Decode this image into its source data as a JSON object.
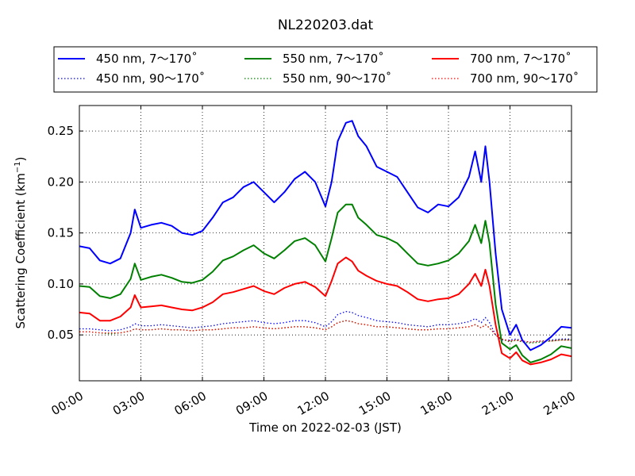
{
  "chart_data": {
    "type": "line",
    "title": "NL220203.dat",
    "xlabel": "Time on 2022-02-03 (JST)",
    "ylabel": "Scattering Coefficient (km",
    "ylabel_sup": "−1",
    "ylabel_close": ")",
    "xlim": [
      0,
      24
    ],
    "ylim": [
      0.005,
      0.275
    ],
    "grid": true,
    "legend_position": "top",
    "x_ticks": [
      {
        "value": 0,
        "label": "00:00"
      },
      {
        "value": 3,
        "label": "03:00"
      },
      {
        "value": 6,
        "label": "06:00"
      },
      {
        "value": 9,
        "label": "09:00"
      },
      {
        "value": 12,
        "label": "12:00"
      },
      {
        "value": 15,
        "label": "15:00"
      },
      {
        "value": 18,
        "label": "18:00"
      },
      {
        "value": 21,
        "label": "21:00"
      },
      {
        "value": 24,
        "label": "24:00"
      }
    ],
    "y_ticks": [
      {
        "value": 0.05,
        "label": "0.05"
      },
      {
        "value": 0.1,
        "label": "0.10"
      },
      {
        "value": 0.15,
        "label": "0.15"
      },
      {
        "value": 0.2,
        "label": "0.20"
      },
      {
        "value": 0.25,
        "label": "0.25"
      }
    ],
    "x": [
      0,
      0.5,
      1,
      1.5,
      2,
      2.5,
      2.7,
      3,
      3.5,
      4,
      4.5,
      5,
      5.5,
      6,
      6.5,
      7,
      7.5,
      8,
      8.5,
      9,
      9.5,
      10,
      10.5,
      11,
      11.5,
      12,
      12.3,
      12.6,
      13,
      13.3,
      13.6,
      14,
      14.5,
      15,
      15.5,
      16,
      16.5,
      17,
      17.5,
      18,
      18.5,
      19,
      19.3,
      19.6,
      19.8,
      20,
      20.3,
      20.6,
      21,
      21.3,
      21.6,
      22,
      22.5,
      23,
      23.5,
      24
    ],
    "series": [
      {
        "name": "450 nm, 7～170˚",
        "color": "#0000ff",
        "style": "solid",
        "values": [
          0.137,
          0.135,
          0.123,
          0.12,
          0.125,
          0.15,
          0.173,
          0.155,
          0.158,
          0.16,
          0.157,
          0.15,
          0.148,
          0.152,
          0.165,
          0.18,
          0.185,
          0.195,
          0.2,
          0.19,
          0.18,
          0.19,
          0.203,
          0.21,
          0.2,
          0.176,
          0.2,
          0.24,
          0.258,
          0.26,
          0.245,
          0.235,
          0.215,
          0.21,
          0.205,
          0.19,
          0.175,
          0.17,
          0.178,
          0.176,
          0.185,
          0.205,
          0.23,
          0.2,
          0.235,
          0.2,
          0.13,
          0.075,
          0.05,
          0.06,
          0.045,
          0.035,
          0.04,
          0.048,
          0.058,
          0.057
        ]
      },
      {
        "name": "550 nm, 7～170˚",
        "color": "#008000",
        "style": "solid",
        "values": [
          0.098,
          0.097,
          0.088,
          0.086,
          0.09,
          0.105,
          0.12,
          0.104,
          0.107,
          0.109,
          0.106,
          0.102,
          0.101,
          0.104,
          0.112,
          0.123,
          0.127,
          0.133,
          0.138,
          0.13,
          0.125,
          0.133,
          0.142,
          0.145,
          0.138,
          0.122,
          0.145,
          0.17,
          0.178,
          0.178,
          0.165,
          0.158,
          0.148,
          0.145,
          0.14,
          0.13,
          0.12,
          0.118,
          0.12,
          0.123,
          0.13,
          0.142,
          0.158,
          0.14,
          0.162,
          0.14,
          0.08,
          0.042,
          0.036,
          0.04,
          0.03,
          0.023,
          0.026,
          0.031,
          0.039,
          0.037
        ]
      },
      {
        "name": "700 nm, 7～170˚",
        "color": "#ff0000",
        "style": "solid",
        "values": [
          0.072,
          0.071,
          0.064,
          0.064,
          0.068,
          0.077,
          0.089,
          0.077,
          0.078,
          0.079,
          0.077,
          0.075,
          0.074,
          0.077,
          0.082,
          0.09,
          0.092,
          0.095,
          0.098,
          0.093,
          0.09,
          0.096,
          0.1,
          0.102,
          0.097,
          0.088,
          0.103,
          0.12,
          0.126,
          0.122,
          0.113,
          0.108,
          0.103,
          0.1,
          0.098,
          0.092,
          0.085,
          0.083,
          0.085,
          0.086,
          0.09,
          0.1,
          0.11,
          0.098,
          0.114,
          0.098,
          0.06,
          0.032,
          0.027,
          0.033,
          0.025,
          0.021,
          0.023,
          0.026,
          0.031,
          0.029
        ]
      },
      {
        "name": "450 nm, 90～170˚",
        "color": "#0000ff",
        "style": "dotted",
        "values": [
          0.056,
          0.056,
          0.055,
          0.054,
          0.055,
          0.058,
          0.061,
          0.059,
          0.059,
          0.06,
          0.059,
          0.058,
          0.057,
          0.058,
          0.059,
          0.061,
          0.062,
          0.063,
          0.064,
          0.062,
          0.061,
          0.062,
          0.064,
          0.064,
          0.062,
          0.058,
          0.063,
          0.07,
          0.073,
          0.072,
          0.069,
          0.067,
          0.064,
          0.063,
          0.062,
          0.06,
          0.059,
          0.058,
          0.06,
          0.06,
          0.061,
          0.063,
          0.066,
          0.062,
          0.067,
          0.062,
          0.05,
          0.045,
          0.045,
          0.046,
          0.044,
          0.043,
          0.044,
          0.045,
          0.046,
          0.046
        ]
      },
      {
        "name": "550 nm, 90～170˚",
        "color": "#008000",
        "style": "dotted",
        "values": [
          0.053,
          0.053,
          0.052,
          0.051,
          0.052,
          0.054,
          0.056,
          0.055,
          0.055,
          0.056,
          0.055,
          0.055,
          0.054,
          0.055,
          0.055,
          0.056,
          0.057,
          0.057,
          0.058,
          0.057,
          0.056,
          0.057,
          0.058,
          0.058,
          0.057,
          0.055,
          0.058,
          0.062,
          0.064,
          0.063,
          0.061,
          0.06,
          0.058,
          0.058,
          0.057,
          0.056,
          0.055,
          0.055,
          0.056,
          0.056,
          0.057,
          0.058,
          0.06,
          0.057,
          0.06,
          0.057,
          0.05,
          0.046,
          0.043,
          0.045,
          0.043,
          0.042,
          0.043,
          0.044,
          0.045,
          0.045
        ]
      },
      {
        "name": "700 nm, 90～170˚",
        "color": "#ff0000",
        "style": "dotted",
        "values": [
          0.053,
          0.053,
          0.052,
          0.052,
          0.052,
          0.054,
          0.056,
          0.055,
          0.055,
          0.056,
          0.055,
          0.055,
          0.054,
          0.055,
          0.055,
          0.056,
          0.057,
          0.057,
          0.058,
          0.057,
          0.056,
          0.057,
          0.058,
          0.058,
          0.057,
          0.055,
          0.058,
          0.062,
          0.064,
          0.063,
          0.061,
          0.06,
          0.058,
          0.058,
          0.057,
          0.056,
          0.055,
          0.055,
          0.056,
          0.056,
          0.057,
          0.058,
          0.06,
          0.057,
          0.06,
          0.057,
          0.05,
          0.046,
          0.044,
          0.045,
          0.044,
          0.043,
          0.044,
          0.044,
          0.045,
          0.045
        ]
      }
    ],
    "legend_order": [
      0,
      1,
      2,
      3,
      4,
      5
    ]
  }
}
